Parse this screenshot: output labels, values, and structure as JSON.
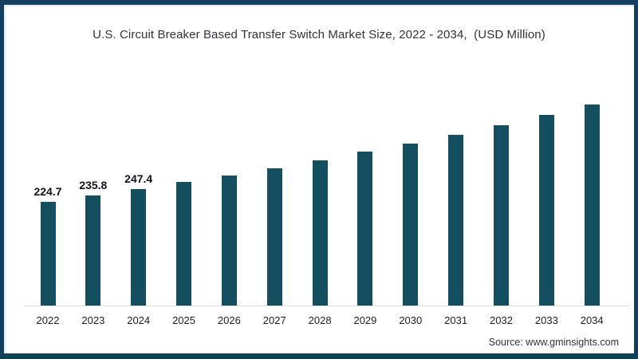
{
  "header": {
    "title": "U.S. Circuit Breaker Based Transfer Switch Market Size, 2022 - 2034,  (USD Million)"
  },
  "footer": {
    "source": "Source: www.gminsights.com"
  },
  "chart_data": {
    "type": "bar",
    "title": "U.S. Circuit Breaker Based Transfer Switch Market Size, 2022 - 2034,  (USD Million)",
    "categories": [
      "2022",
      "2023",
      "2024",
      "2025",
      "2026",
      "2027",
      "2028",
      "2029",
      "2030",
      "2031",
      "2032",
      "2033",
      "2034"
    ],
    "values": [
      224.7,
      235.8,
      247.4,
      259.5,
      272.0,
      285.0,
      299.0,
      313.5,
      328.5,
      344.5,
      361.0,
      379.0,
      398.0
    ],
    "visible_data_labels": [
      "224.7",
      "235.8",
      "247.4"
    ],
    "labeled_categories": [
      "2022",
      "2023",
      "2024"
    ],
    "xlabel": "",
    "ylabel": "",
    "ylim": [
      40,
      400
    ],
    "y_axis_shown": false,
    "grid": false,
    "legend": false,
    "bar_color": "#134f5e",
    "axis_line_color": "#d8dcdc",
    "note": "Only the first three bars show data labels; remaining values estimated from bar heights."
  }
}
